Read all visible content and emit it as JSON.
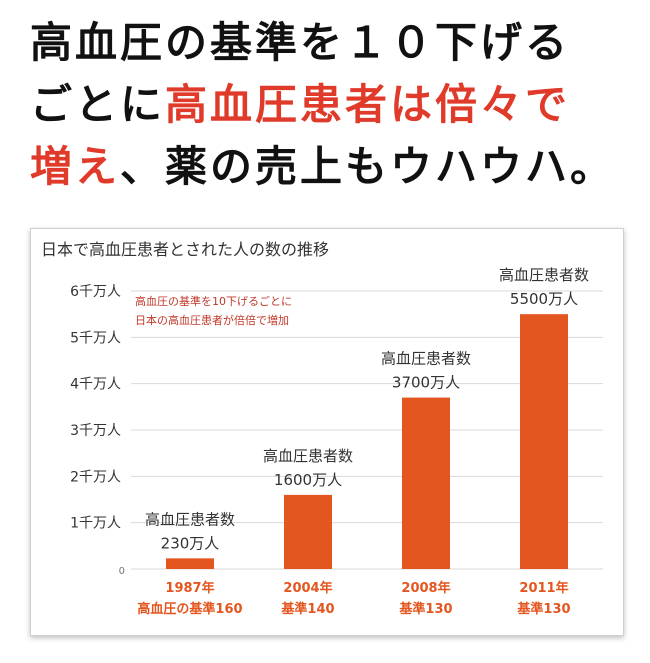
{
  "headline": {
    "line1": "高血圧の基準を１０下げる",
    "line2_a": "ごとに",
    "line2_b": "高血圧患者は倍々で",
    "line3_a": "増え",
    "line3_b": "、薬の売上もウハウハ。"
  },
  "colors": {
    "bar": "#e4561f",
    "accent_red": "#e03a2a",
    "note_red": "#c0392b",
    "grid": "#d9d9d9"
  },
  "chart_data": {
    "type": "bar",
    "title": "日本で高血圧患者とされた人の数の推移",
    "unit": "万人",
    "ylim": [
      0,
      6000
    ],
    "y_ticks": [
      {
        "value": 0,
        "label": "0"
      },
      {
        "value": 1000,
        "label": "1千万人"
      },
      {
        "value": 2000,
        "label": "2千万人"
      },
      {
        "value": 3000,
        "label": "3千万人"
      },
      {
        "value": 4000,
        "label": "4千万人"
      },
      {
        "value": 5000,
        "label": "5千万人"
      },
      {
        "value": 6000,
        "label": "6千万人"
      }
    ],
    "categories": [
      "1987年",
      "2004年",
      "2008年",
      "2011年"
    ],
    "category_sublabels": [
      "高血圧の基準160",
      "基準140",
      "基準130",
      "基準130"
    ],
    "values": [
      230,
      1600,
      3700,
      5500
    ],
    "data_label_titles": [
      "高血圧患者数",
      "高血圧患者数",
      "高血圧患者数",
      "高血圧患者数"
    ],
    "data_label_values": [
      "230万人",
      "1600万人",
      "3700万人",
      "5500万人"
    ],
    "annotation": [
      "高血圧の基準を10下げるごとに",
      "日本の高血圧患者が倍倍で増加"
    ],
    "grid": true
  }
}
